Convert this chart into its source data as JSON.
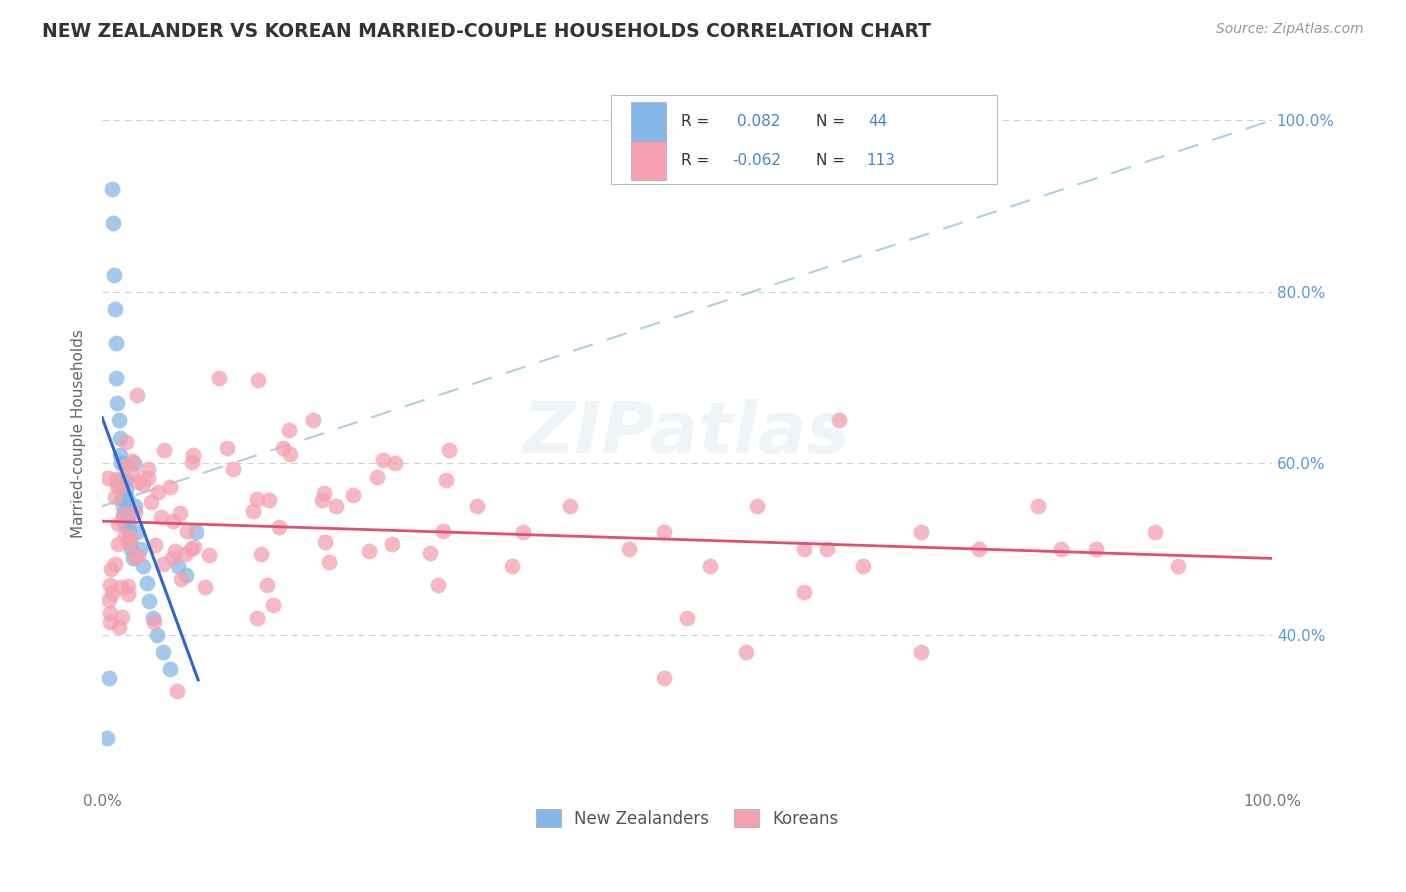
{
  "title": "NEW ZEALANDER VS KOREAN MARRIED-COUPLE HOUSEHOLDS CORRELATION CHART",
  "source": "Source: ZipAtlas.com",
  "ylabel": "Married-couple Households",
  "legend_nz": "New Zealanders",
  "legend_ko": "Koreans",
  "r_nz": 0.082,
  "n_nz": 44,
  "r_ko": -0.062,
  "n_ko": 113,
  "nz_color": "#85b8e8",
  "ko_color": "#f4a0b0",
  "nz_line_color": "#3366cc",
  "ko_line_color": "#e05070",
  "trend_line_color": "#a0c8d8",
  "background_color": "#ffffff",
  "grid_color": "#cccccc",
  "right_tick_color": "#5599dd",
  "xlim": [
    0.0,
    1.0
  ],
  "ylim": [
    0.22,
    1.05
  ],
  "yticks": [
    0.4,
    0.6,
    0.8,
    1.0
  ],
  "ytick_labels": [
    "40.0%",
    "60.0%",
    "80.0%",
    "100.0%"
  ]
}
